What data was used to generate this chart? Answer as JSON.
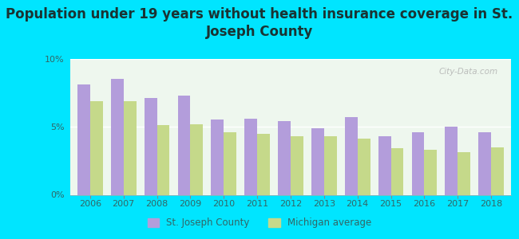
{
  "title": "Population under 19 years without health insurance coverage in St.\nJoseph County",
  "years": [
    2006,
    2007,
    2008,
    2009,
    2010,
    2011,
    2012,
    2013,
    2014,
    2015,
    2016,
    2017,
    2018
  ],
  "st_joseph": [
    8.1,
    8.5,
    7.1,
    7.3,
    5.5,
    5.6,
    5.4,
    4.9,
    5.7,
    4.3,
    4.6,
    5.0,
    4.6
  ],
  "michigan": [
    6.9,
    6.9,
    5.1,
    5.2,
    4.6,
    4.5,
    4.3,
    4.3,
    4.1,
    3.4,
    3.3,
    3.1,
    3.5
  ],
  "bar_color_sj": "#b39ddb",
  "bar_color_mi": "#c5d98a",
  "background_outer": "#00e5ff",
  "background_chart": "#eef7ee",
  "ylim": [
    0,
    10
  ],
  "yticks": [
    0,
    5,
    10
  ],
  "ytick_labels": [
    "0%",
    "5%",
    "10%"
  ],
  "legend_sj": "St. Joseph County",
  "legend_mi": "Michigan average",
  "title_fontsize": 12,
  "watermark": "City-Data.com",
  "bar_width": 0.38
}
